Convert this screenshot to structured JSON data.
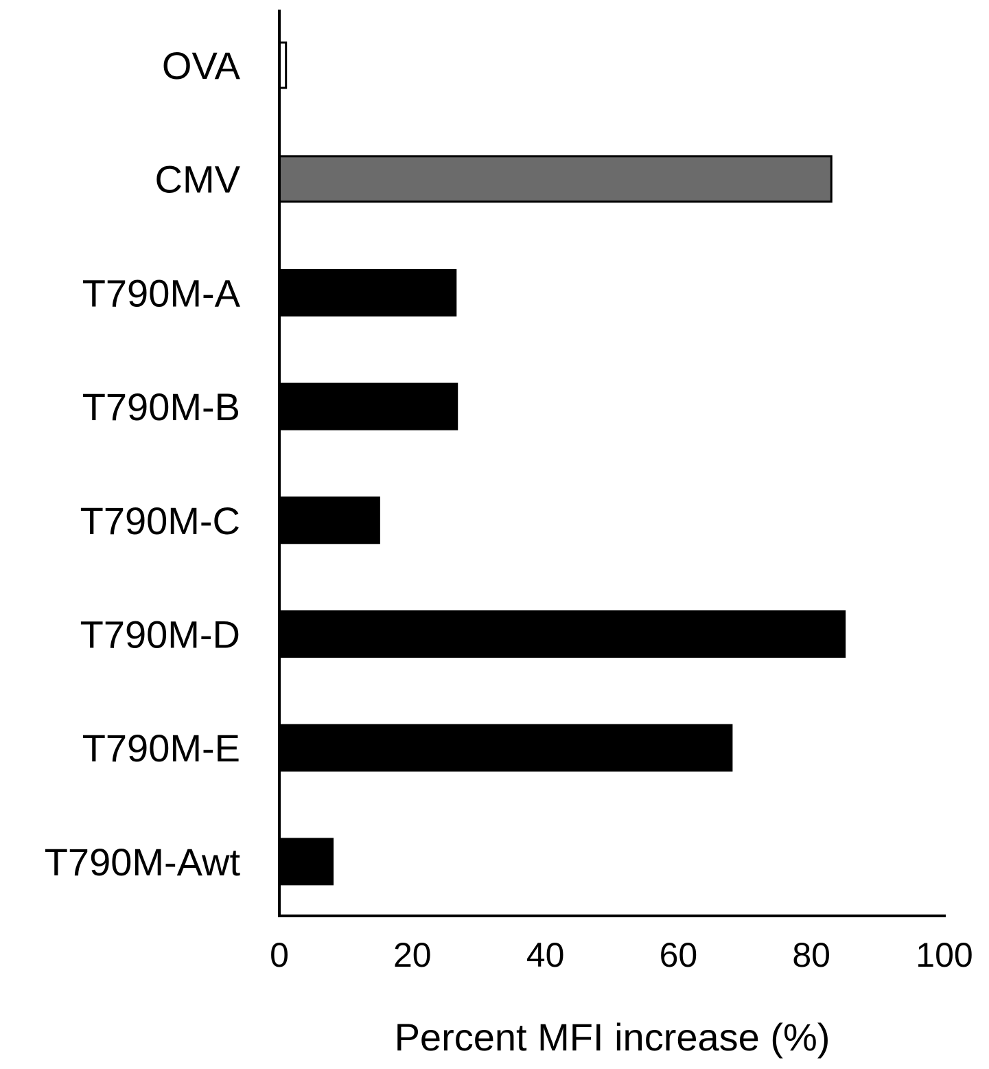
{
  "chart_data": {
    "type": "bar",
    "orientation": "horizontal",
    "categories": [
      "OVA",
      "CMV",
      "T790M-A",
      "T790M-B",
      "T790M-C",
      "T790M-D",
      "T790M-E",
      "T790M-Awt"
    ],
    "values": [
      1,
      83,
      26.5,
      26.7,
      15,
      85,
      68,
      8
    ],
    "bar_colors": [
      "#ffffff",
      "#6b6b6b",
      "#000000",
      "#000000",
      "#000000",
      "#000000",
      "#000000",
      "#000000"
    ],
    "xlabel": "Percent MFI increase (%)",
    "ylabel": "",
    "xlim": [
      0,
      100
    ],
    "xticks": [
      "0",
      "20",
      "40",
      "60",
      "80",
      "100"
    ],
    "grid": false,
    "legend": "none"
  }
}
